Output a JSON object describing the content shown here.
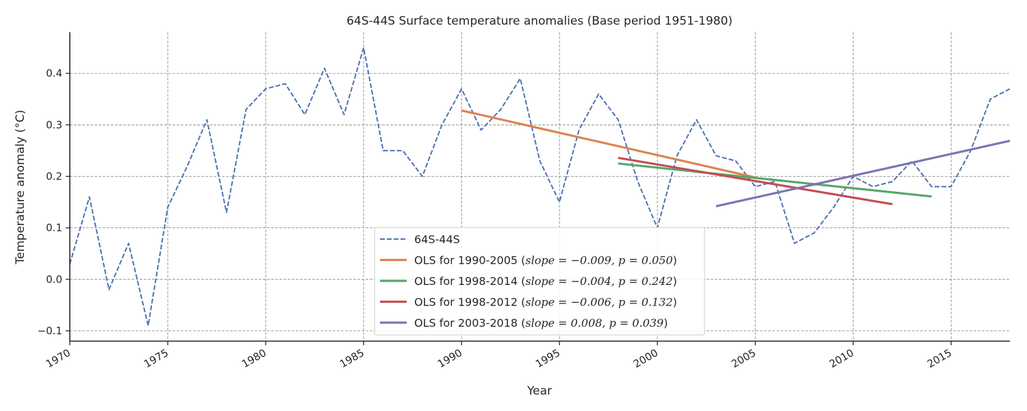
{
  "chart_data": {
    "type": "line",
    "title": "64S-44S Surface temperature anomalies (Base period 1951-1980)",
    "xlabel": "Year",
    "ylabel": "Temperature anomaly (°C)",
    "xlim": [
      1970,
      2018
    ],
    "ylim": [
      -0.12,
      0.48
    ],
    "xticks": [
      1970,
      1975,
      1980,
      1985,
      1990,
      1995,
      2000,
      2005,
      2010,
      2015
    ],
    "yticks": [
      -0.1,
      0.0,
      0.1,
      0.2,
      0.3,
      0.4
    ],
    "ytick_labels": [
      "−0.1",
      "0.0",
      "0.1",
      "0.2",
      "0.3",
      "0.4"
    ],
    "grid": true,
    "legend_position": "lower-center",
    "series": [
      {
        "name": "64S-44S",
        "style": "dashed",
        "color": "#4c72b0",
        "x": [
          1970,
          1971,
          1972,
          1973,
          1974,
          1975,
          1976,
          1977,
          1978,
          1979,
          1980,
          1981,
          1982,
          1983,
          1984,
          1985,
          1986,
          1987,
          1988,
          1989,
          1990,
          1991,
          1992,
          1993,
          1994,
          1995,
          1996,
          1997,
          1998,
          1999,
          2000,
          2001,
          2002,
          2003,
          2004,
          2005,
          2006,
          2007,
          2008,
          2009,
          2010,
          2011,
          2012,
          2013,
          2014,
          2015,
          2016,
          2017,
          2018
        ],
        "y": [
          0.03,
          0.16,
          -0.02,
          0.07,
          -0.09,
          0.14,
          0.22,
          0.31,
          0.13,
          0.33,
          0.37,
          0.38,
          0.32,
          0.41,
          0.32,
          0.45,
          0.25,
          0.25,
          0.2,
          0.3,
          0.37,
          0.29,
          0.33,
          0.39,
          0.23,
          0.15,
          0.29,
          0.36,
          0.31,
          0.19,
          0.1,
          0.24,
          0.31,
          0.24,
          0.23,
          0.18,
          0.19,
          0.07,
          0.09,
          0.14,
          0.2,
          0.18,
          0.19,
          0.23,
          0.18,
          0.18,
          0.25,
          0.35,
          0.37
        ]
      },
      {
        "name": "OLS for 1990-2005",
        "slope_text": "slope = −0.009, p = 0.050",
        "style": "solid",
        "color": "#dd8452",
        "x": [
          1990,
          2005
        ],
        "y": [
          0.328,
          0.198
        ]
      },
      {
        "name": "OLS for 1998-2014",
        "slope_text": "slope = −0.004, p = 0.242",
        "style": "solid",
        "color": "#55a868",
        "x": [
          1998,
          2014
        ],
        "y": [
          0.225,
          0.161
        ]
      },
      {
        "name": "OLS for 1998-2012",
        "slope_text": "slope = −0.006, p = 0.132",
        "style": "solid",
        "color": "#c44e52",
        "x": [
          1998,
          2012
        ],
        "y": [
          0.236,
          0.146
        ]
      },
      {
        "name": "OLS for 2003-2018",
        "slope_text": "slope = 0.008, p = 0.039",
        "style": "solid",
        "color": "#8172b3",
        "x": [
          2003,
          2018
        ],
        "y": [
          0.142,
          0.269
        ]
      }
    ]
  }
}
